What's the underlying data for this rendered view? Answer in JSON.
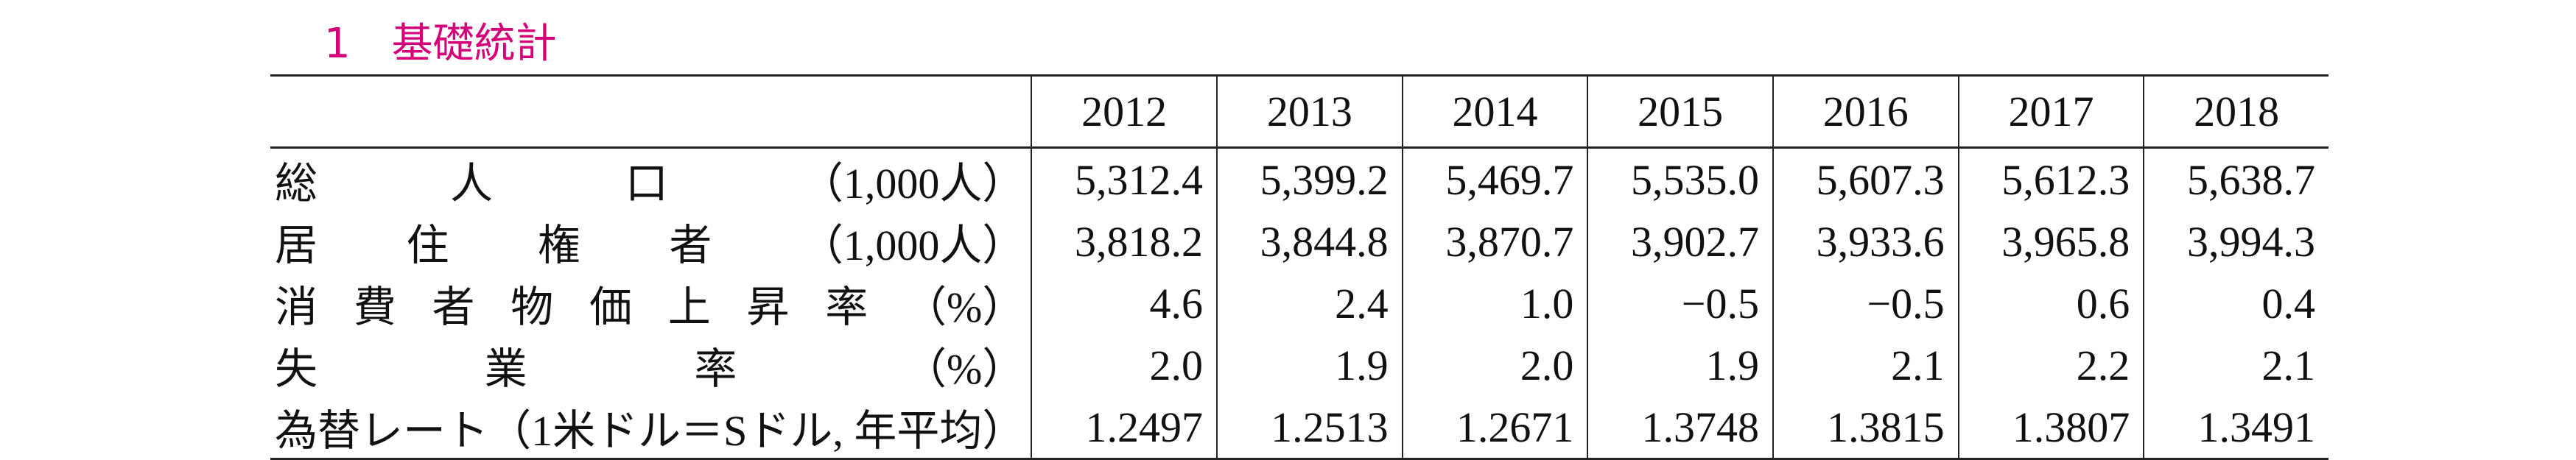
{
  "title": "1　基礎統計",
  "table": {
    "header": [
      "2012",
      "2013",
      "2014",
      "2015",
      "2016",
      "2017",
      "2018"
    ],
    "rows": [
      {
        "label": "総人口（1,000人）",
        "values": [
          "5,312.4",
          "5,399.2",
          "5,469.7",
          "5,535.0",
          "5,607.3",
          "5,612.3",
          "5,638.7"
        ]
      },
      {
        "label": "居住権者（1,000人）",
        "values": [
          "3,818.2",
          "3,844.8",
          "3,870.7",
          "3,902.7",
          "3,933.6",
          "3,965.8",
          "3,994.3"
        ]
      },
      {
        "label": "消費者物価上昇率（%）",
        "values": [
          "4.6",
          "2.4",
          "1.0",
          "−0.5",
          "−0.5",
          "0.6",
          "0.4"
        ]
      },
      {
        "label": "失業率（%）",
        "values": [
          "2.0",
          "1.9",
          "2.0",
          "1.9",
          "2.1",
          "2.2",
          "2.1"
        ]
      },
      {
        "label": "為替レート（1米ドル＝Sドル, 年平均）",
        "values": [
          "1.2497",
          "1.2513",
          "1.2671",
          "1.3748",
          "1.3815",
          "1.3807",
          "1.3491"
        ]
      }
    ]
  }
}
